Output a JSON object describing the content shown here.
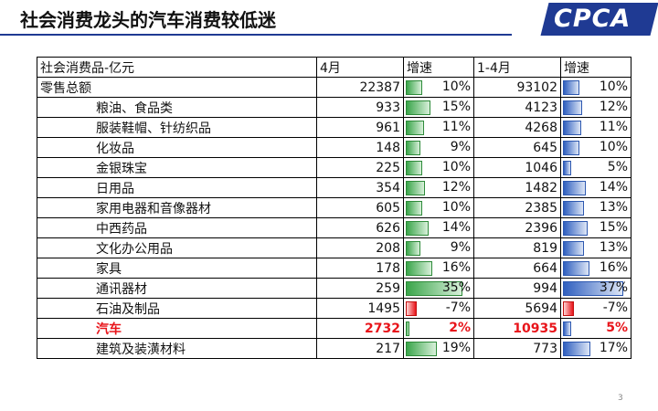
{
  "title": "社会消费龙头的汽车消费较低迷",
  "logo": "CPCA",
  "page_number": "3",
  "colors": {
    "accent": "#1f3a93",
    "highlight": "#e8141a",
    "bar_green": "#3aa54a",
    "bar_blue": "#2f5fbf"
  },
  "table": {
    "headers": [
      "社会消费品-亿元",
      "4月",
      "增速",
      "1-4月",
      "增速"
    ],
    "rows": [
      {
        "name": "零售总额",
        "apr": "22387",
        "apr_g": "10%",
        "ytd": "93102",
        "ytd_g": "10%",
        "apr_v": 10,
        "ytd_v": 10,
        "indent": false,
        "highlight": false
      },
      {
        "name": "粮油、食品类",
        "apr": "933",
        "apr_g": "15%",
        "ytd": "4123",
        "ytd_g": "12%",
        "apr_v": 15,
        "ytd_v": 12,
        "indent": true,
        "highlight": false
      },
      {
        "name": "服装鞋帽、针纺织品",
        "apr": "961",
        "apr_g": "11%",
        "ytd": "4268",
        "ytd_g": "11%",
        "apr_v": 11,
        "ytd_v": 11,
        "indent": true,
        "highlight": false
      },
      {
        "name": "化妆品",
        "apr": "148",
        "apr_g": "9%",
        "ytd": "645",
        "ytd_g": "10%",
        "apr_v": 9,
        "ytd_v": 10,
        "indent": true,
        "highlight": false
      },
      {
        "name": "金银珠宝",
        "apr": "225",
        "apr_g": "10%",
        "ytd": "1046",
        "ytd_g": "5%",
        "apr_v": 10,
        "ytd_v": 5,
        "indent": true,
        "highlight": false
      },
      {
        "name": "日用品",
        "apr": "354",
        "apr_g": "12%",
        "ytd": "1482",
        "ytd_g": "14%",
        "apr_v": 12,
        "ytd_v": 14,
        "indent": true,
        "highlight": false
      },
      {
        "name": "家用电器和音像器材",
        "apr": "605",
        "apr_g": "10%",
        "ytd": "2385",
        "ytd_g": "13%",
        "apr_v": 10,
        "ytd_v": 13,
        "indent": true,
        "highlight": false
      },
      {
        "name": "中西药品",
        "apr": "626",
        "apr_g": "14%",
        "ytd": "2396",
        "ytd_g": "15%",
        "apr_v": 14,
        "ytd_v": 15,
        "indent": true,
        "highlight": false
      },
      {
        "name": "文化办公用品",
        "apr": "208",
        "apr_g": "9%",
        "ytd": "819",
        "ytd_g": "13%",
        "apr_v": 9,
        "ytd_v": 13,
        "indent": true,
        "highlight": false
      },
      {
        "name": "家具",
        "apr": "178",
        "apr_g": "16%",
        "ytd": "664",
        "ytd_g": "16%",
        "apr_v": 16,
        "ytd_v": 16,
        "indent": true,
        "highlight": false
      },
      {
        "name": "通讯器材",
        "apr": "259",
        "apr_g": "35%",
        "ytd": "994",
        "ytd_g": "37%",
        "apr_v": 35,
        "ytd_v": 37,
        "indent": true,
        "highlight": false
      },
      {
        "name": "石油及制品",
        "apr": "1495",
        "apr_g": "-7%",
        "ytd": "5694",
        "ytd_g": "-7%",
        "apr_v": -7,
        "ytd_v": -7,
        "indent": true,
        "highlight": false
      },
      {
        "name": "汽车",
        "apr": "2732",
        "apr_g": "2%",
        "ytd": "10935",
        "ytd_g": "5%",
        "apr_v": 2,
        "ytd_v": 5,
        "indent": true,
        "highlight": true
      },
      {
        "name": "建筑及装潢材料",
        "apr": "217",
        "apr_g": "19%",
        "ytd": "773",
        "ytd_g": "17%",
        "apr_v": 19,
        "ytd_v": 17,
        "indent": true,
        "highlight": false
      }
    ]
  }
}
